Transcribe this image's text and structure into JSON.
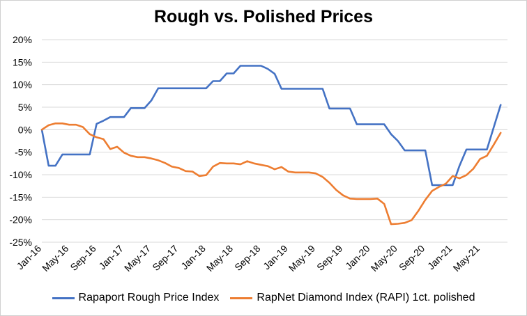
{
  "chart_data": {
    "type": "line",
    "title": "Rough vs. Polished Prices",
    "xlabel": "",
    "ylabel": "",
    "ylim": [
      -25,
      20
    ],
    "y_ticks": [
      "20%",
      "15%",
      "10%",
      "5%",
      "0%",
      "-5%",
      "-10%",
      "-15%",
      "-20%",
      "-25%"
    ],
    "y_tick_values": [
      20,
      15,
      10,
      5,
      0,
      -5,
      -10,
      -15,
      -20,
      -25
    ],
    "x_tick_labels": [
      "Jan-16",
      "May-16",
      "Sep-16",
      "Jan-17",
      "May-17",
      "Sep-17",
      "Jan-18",
      "May-18",
      "Sep-18",
      "Jan-19",
      "May-19",
      "Sep-19",
      "Jan-20",
      "May-20",
      "Sep-20",
      "Jan-21",
      "May-21"
    ],
    "x_tick_months": [
      0,
      4,
      8,
      12,
      16,
      20,
      24,
      28,
      32,
      36,
      40,
      44,
      48,
      52,
      56,
      60,
      64
    ],
    "x_range_months": [
      0,
      68
    ],
    "grid": "horizontal",
    "legend_position": "bottom",
    "series": [
      {
        "name": "Rapaport Rough Price Index",
        "color": "#4472C4",
        "points": [
          [
            0,
            0
          ],
          [
            1,
            -8
          ],
          [
            2,
            -8
          ],
          [
            3,
            -5.5
          ],
          [
            4,
            -5.5
          ],
          [
            5,
            -5.5
          ],
          [
            6,
            -5.5
          ],
          [
            7,
            -5.5
          ],
          [
            8,
            1.3
          ],
          [
            9,
            2
          ],
          [
            10,
            2.8
          ],
          [
            11,
            2.8
          ],
          [
            12,
            2.8
          ],
          [
            13,
            4.8
          ],
          [
            14,
            4.8
          ],
          [
            15,
            4.8
          ],
          [
            16,
            6.5
          ],
          [
            17,
            9.2
          ],
          [
            18,
            9.2
          ],
          [
            19,
            9.2
          ],
          [
            20,
            9.2
          ],
          [
            21,
            9.2
          ],
          [
            22,
            9.2
          ],
          [
            23,
            9.2
          ],
          [
            24,
            9.2
          ],
          [
            25,
            10.8
          ],
          [
            26,
            10.8
          ],
          [
            27,
            12.5
          ],
          [
            28,
            12.5
          ],
          [
            29,
            14.2
          ],
          [
            30,
            14.2
          ],
          [
            31,
            14.2
          ],
          [
            32,
            14.2
          ],
          [
            33,
            13.5
          ],
          [
            34,
            12.4
          ],
          [
            35,
            9.1
          ],
          [
            36,
            9.1
          ],
          [
            37,
            9.1
          ],
          [
            38,
            9.1
          ],
          [
            39,
            9.1
          ],
          [
            40,
            9.1
          ],
          [
            41,
            9.1
          ],
          [
            42,
            4.7
          ],
          [
            43,
            4.7
          ],
          [
            44,
            4.7
          ],
          [
            45,
            4.7
          ],
          [
            46,
            1.2
          ],
          [
            47,
            1.2
          ],
          [
            48,
            1.2
          ],
          [
            49,
            1.2
          ],
          [
            50,
            1.2
          ],
          [
            51,
            -1
          ],
          [
            52,
            -2.5
          ],
          [
            53,
            -4.6
          ],
          [
            54,
            -4.6
          ],
          [
            55,
            -4.6
          ],
          [
            56,
            -4.6
          ],
          [
            57,
            -12.3
          ],
          [
            58,
            -12.3
          ],
          [
            59,
            -12.3
          ],
          [
            60,
            -12.3
          ],
          [
            61,
            -8
          ],
          [
            62,
            -4.4
          ],
          [
            63,
            -4.4
          ],
          [
            64,
            -4.4
          ],
          [
            65,
            -4.4
          ],
          [
            66,
            0.6
          ],
          [
            67,
            5.5
          ]
        ]
      },
      {
        "name": "RapNet Diamond Index (RAPI) 1ct. polished",
        "color": "#ED7D31",
        "points": [
          [
            0,
            0
          ],
          [
            1,
            1
          ],
          [
            2,
            1.4
          ],
          [
            3,
            1.4
          ],
          [
            4,
            1.1
          ],
          [
            5,
            1.1
          ],
          [
            6,
            0.6
          ],
          [
            7,
            -1
          ],
          [
            8,
            -1.7
          ],
          [
            9,
            -2.1
          ],
          [
            10,
            -4.3
          ],
          [
            11,
            -3.8
          ],
          [
            12,
            -5.1
          ],
          [
            13,
            -5.8
          ],
          [
            14,
            -6.1
          ],
          [
            15,
            -6.1
          ],
          [
            16,
            -6.4
          ],
          [
            17,
            -6.8
          ],
          [
            18,
            -7.4
          ],
          [
            19,
            -8.2
          ],
          [
            20,
            -8.5
          ],
          [
            21,
            -9.2
          ],
          [
            22,
            -9.3
          ],
          [
            23,
            -10.3
          ],
          [
            24,
            -10.1
          ],
          [
            25,
            -8.2
          ],
          [
            26,
            -7.4
          ],
          [
            27,
            -7.5
          ],
          [
            28,
            -7.5
          ],
          [
            29,
            -7.7
          ],
          [
            30,
            -7
          ],
          [
            31,
            -7.5
          ],
          [
            32,
            -7.8
          ],
          [
            33,
            -8.1
          ],
          [
            34,
            -8.8
          ],
          [
            35,
            -8.3
          ],
          [
            36,
            -9.3
          ],
          [
            37,
            -9.5
          ],
          [
            38,
            -9.5
          ],
          [
            39,
            -9.5
          ],
          [
            40,
            -9.7
          ],
          [
            41,
            -10.5
          ],
          [
            42,
            -11.8
          ],
          [
            43,
            -13.4
          ],
          [
            44,
            -14.6
          ],
          [
            45,
            -15.3
          ],
          [
            46,
            -15.4
          ],
          [
            47,
            -15.4
          ],
          [
            48,
            -15.4
          ],
          [
            49,
            -15.3
          ],
          [
            50,
            -16.5
          ],
          [
            51,
            -21
          ],
          [
            52,
            -20.9
          ],
          [
            53,
            -20.7
          ],
          [
            54,
            -20.1
          ],
          [
            55,
            -18
          ],
          [
            56,
            -15.6
          ],
          [
            57,
            -13.6
          ],
          [
            58,
            -12.7
          ],
          [
            59,
            -12
          ],
          [
            60,
            -10.3
          ],
          [
            61,
            -10.8
          ],
          [
            62,
            -10.1
          ],
          [
            63,
            -8.7
          ],
          [
            64,
            -6.5
          ],
          [
            65,
            -5.8
          ],
          [
            66,
            -3.3
          ],
          [
            67,
            -0.7
          ]
        ]
      }
    ]
  }
}
